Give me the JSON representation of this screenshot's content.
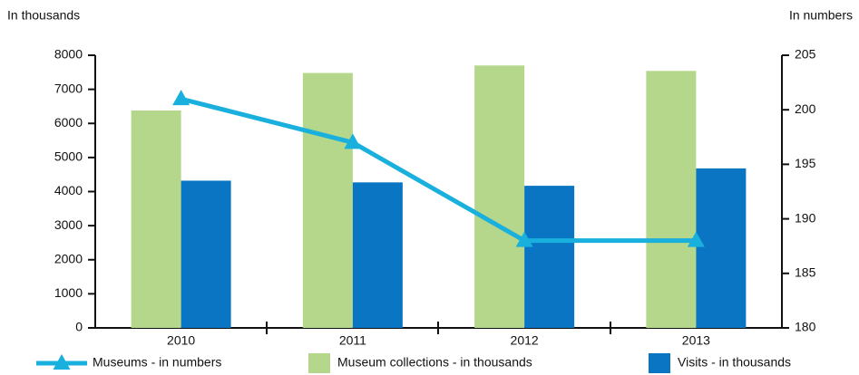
{
  "chart_data": {
    "type": "bar",
    "y_label": "In thousands",
    "y2_label": "In numbers",
    "categories": [
      "2010",
      "2011",
      "2012",
      "2013"
    ],
    "series": [
      {
        "name": "Museums - in numbers",
        "type": "line",
        "axis": "y2",
        "color": "#1ab0dd",
        "values": [
          201,
          197,
          188,
          188
        ]
      },
      {
        "name": "Museum collections - in thousands",
        "type": "bar",
        "color": "#b5d78b",
        "values": [
          6380,
          7480,
          7700,
          7540
        ]
      },
      {
        "name": "Visits - in thousands",
        "type": "bar",
        "color": "#0a75c2",
        "values": [
          4320,
          4270,
          4170,
          4680
        ]
      }
    ],
    "ylim": [
      0,
      8000
    ],
    "yticks": [
      0,
      1000,
      2000,
      3000,
      4000,
      5000,
      6000,
      7000,
      8000
    ],
    "y2lim": [
      180,
      205
    ],
    "y2ticks": [
      180,
      185,
      190,
      195,
      200,
      205
    ],
    "grid": false,
    "legend": "bottom"
  }
}
